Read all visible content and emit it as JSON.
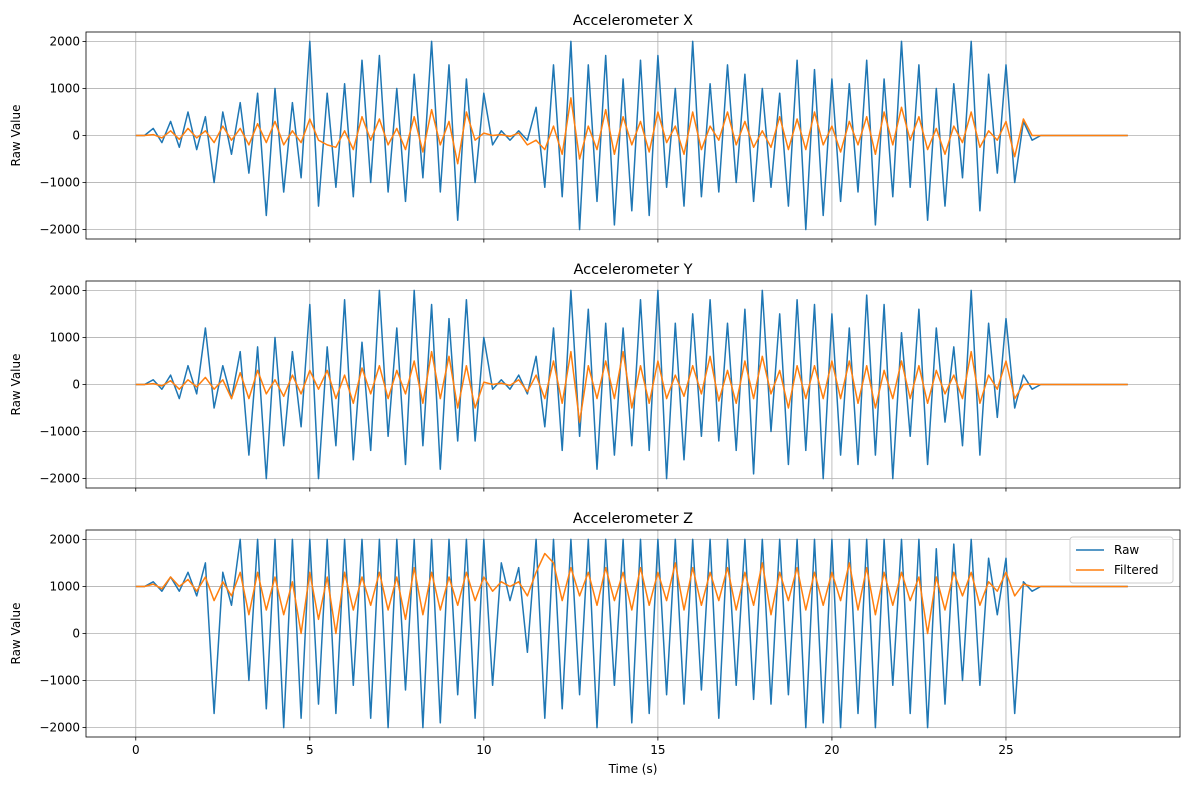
{
  "chart_data": [
    {
      "type": "line",
      "title": "Accelerometer X",
      "xlabel": "",
      "ylabel": "Raw Value",
      "xlim": [
        -1.43,
        30.0
      ],
      "ylim": [
        -2200,
        2200
      ],
      "xticks": [
        0,
        5,
        10,
        15,
        20,
        25
      ],
      "xtick_labels_visible": false,
      "yticks": [
        -2000,
        -1000,
        0,
        1000,
        2000
      ],
      "ytick_labels": [
        "−2000",
        "−1000",
        "0",
        "1000",
        "2000"
      ],
      "grid": true,
      "series": [
        {
          "color": "#1f77b4",
          "values": [
            0,
            0,
            150,
            -150,
            300,
            -250,
            500,
            -300,
            400,
            -1000,
            500,
            -400,
            700,
            -800,
            900,
            -1700,
            1000,
            -1200,
            700,
            -900,
            2000,
            -1500,
            900,
            -1100,
            1100,
            -1300,
            1600,
            -1000,
            1700,
            -1200,
            1000,
            -1400,
            1300,
            -900,
            2000,
            -1200,
            1500,
            -1800,
            1200,
            -1000,
            900,
            -200,
            100,
            -100,
            100,
            -100,
            600,
            -1100,
            1500,
            -1300,
            2000,
            -2000,
            1500,
            -1400,
            1700,
            -1900,
            1200,
            -1600,
            1600,
            -1700,
            1700,
            -1100,
            1000,
            -1500,
            2000,
            -1300,
            1100,
            -1200,
            1500,
            -1000,
            1300,
            -1400,
            1000,
            -1100,
            900,
            -1500,
            1600,
            -2000,
            1400,
            -1700,
            1200,
            -1400,
            1100,
            -1200,
            1600,
            -1900,
            1200,
            -1300,
            2000,
            -1100,
            1500,
            -1800,
            1000,
            -1500,
            1100,
            -900,
            2000,
            -1600,
            1300,
            -800,
            1500,
            -1000,
            300,
            -100,
            0,
            0,
            0,
            0,
            0,
            0,
            0,
            0,
            0,
            0,
            0
          ]
        },
        {
          "color": "#ff7f0e",
          "values": [
            0,
            0,
            20,
            -50,
            100,
            -80,
            150,
            -50,
            100,
            -150,
            200,
            -100,
            150,
            -200,
            250,
            -150,
            300,
            -200,
            100,
            -150,
            350,
            -100,
            -200,
            -250,
            100,
            -300,
            400,
            -100,
            350,
            -200,
            150,
            -300,
            400,
            -350,
            550,
            -200,
            300,
            -600,
            500,
            -100,
            50,
            0,
            20,
            -20,
            50,
            -200,
            -100,
            -300,
            200,
            -400,
            800,
            -500,
            200,
            -300,
            550,
            -400,
            400,
            -200,
            300,
            -350,
            500,
            -150,
            200,
            -400,
            500,
            -300,
            200,
            -100,
            500,
            -200,
            300,
            -250,
            100,
            -250,
            400,
            -300,
            350,
            -300,
            500,
            -200,
            200,
            -350,
            300,
            -200,
            400,
            -400,
            500,
            -200,
            600,
            -100,
            400,
            -300,
            150,
            -400,
            200,
            -150,
            500,
            -250,
            100,
            -100,
            300,
            -450,
            350,
            0,
            0,
            0,
            0,
            0,
            0,
            0,
            0,
            0,
            0,
            0,
            0
          ]
        }
      ]
    },
    {
      "type": "line",
      "title": "Accelerometer Y",
      "xlabel": "",
      "ylabel": "Raw Value",
      "xlim": [
        -1.43,
        30.0
      ],
      "ylim": [
        -2200,
        2200
      ],
      "xticks": [
        0,
        5,
        10,
        15,
        20,
        25
      ],
      "xtick_labels_visible": false,
      "yticks": [
        -2000,
        -1000,
        0,
        1000,
        2000
      ],
      "ytick_labels": [
        "−2000",
        "−1000",
        "0",
        "1000",
        "2000"
      ],
      "grid": true,
      "series": [
        {
          "color": "#1f77b4",
          "values": [
            0,
            0,
            100,
            -100,
            200,
            -300,
            400,
            -200,
            1200,
            -500,
            400,
            -300,
            700,
            -1500,
            800,
            -2000,
            1000,
            -1300,
            700,
            -900,
            1700,
            -2000,
            800,
            -1300,
            1800,
            -1600,
            900,
            -1400,
            2000,
            -1100,
            1200,
            -1700,
            2000,
            -1300,
            1700,
            -1800,
            1400,
            -1200,
            1800,
            -1200,
            1000,
            -100,
            100,
            -100,
            200,
            -200,
            600,
            -900,
            1200,
            -1400,
            2000,
            -1100,
            1600,
            -1800,
            1300,
            -1500,
            1200,
            -1300,
            1800,
            -1400,
            2000,
            -2000,
            1300,
            -1600,
            1500,
            -1100,
            1800,
            -1200,
            1300,
            -1400,
            1600,
            -1900,
            2000,
            -1000,
            1500,
            -1700,
            1800,
            -1400,
            1700,
            -2000,
            1500,
            -1500,
            1200,
            -1700,
            1900,
            -1500,
            1700,
            -2000,
            1100,
            -1100,
            1600,
            -1700,
            1200,
            -800,
            800,
            -1300,
            2000,
            -1500,
            1300,
            -700,
            1400,
            -500,
            200,
            -100,
            0,
            0,
            0,
            0,
            0,
            0,
            0,
            0,
            0,
            0,
            0
          ]
        },
        {
          "color": "#ff7f0e",
          "values": [
            0,
            0,
            20,
            -30,
            80,
            -100,
            100,
            -50,
            150,
            -100,
            100,
            -300,
            250,
            -300,
            300,
            -200,
            100,
            -250,
            200,
            -200,
            300,
            -100,
            300,
            -300,
            200,
            -400,
            350,
            -200,
            400,
            -300,
            300,
            -200,
            500,
            -400,
            700,
            -300,
            600,
            -500,
            400,
            -500,
            50,
            0,
            30,
            -20,
            100,
            -150,
            200,
            -300,
            500,
            -400,
            700,
            -800,
            400,
            -300,
            500,
            -300,
            700,
            -500,
            400,
            -400,
            500,
            -300,
            200,
            -250,
            400,
            -200,
            600,
            -350,
            300,
            -400,
            500,
            -300,
            600,
            -200,
            300,
            -500,
            400,
            -300,
            400,
            -300,
            500,
            -300,
            500,
            -400,
            400,
            -500,
            300,
            -300,
            500,
            -300,
            400,
            -400,
            300,
            -200,
            200,
            -300,
            700,
            -400,
            200,
            -100,
            500,
            -300,
            0,
            10,
            0,
            0,
            0,
            0,
            0,
            0,
            0,
            0,
            0,
            0,
            0
          ]
        }
      ]
    },
    {
      "type": "line",
      "title": "Accelerometer Z",
      "xlabel": "Time (s)",
      "ylabel": "Raw Value",
      "xlim": [
        -1.43,
        30.0
      ],
      "ylim": [
        -2200,
        2200
      ],
      "xticks": [
        0,
        5,
        10,
        15,
        20,
        25
      ],
      "xtick_labels": [
        "0",
        "5",
        "10",
        "15",
        "20",
        "25"
      ],
      "yticks": [
        -2000,
        -1000,
        0,
        1000,
        2000
      ],
      "ytick_labels": [
        "−2000",
        "−1000",
        "0",
        "1000",
        "2000"
      ],
      "grid": true,
      "legend": {
        "placement": "top-right",
        "entries": [
          "Raw",
          "Filtered"
        ]
      },
      "series": [
        {
          "name": "Raw",
          "color": "#1f77b4",
          "values": [
            1000,
            1000,
            1100,
            900,
            1200,
            900,
            1300,
            800,
            1500,
            -1700,
            1300,
            600,
            2000,
            -1000,
            2000,
            -1600,
            2000,
            -2000,
            2000,
            -1800,
            2000,
            -1500,
            2000,
            -1700,
            2000,
            -1100,
            2000,
            -1800,
            2000,
            -2000,
            2000,
            -1200,
            2000,
            -2000,
            2000,
            -1900,
            2000,
            -1300,
            2000,
            -1800,
            2000,
            -1100,
            1500,
            700,
            1400,
            -400,
            2000,
            -1800,
            2000,
            -1600,
            2000,
            -1300,
            2000,
            -2000,
            2000,
            -1100,
            2000,
            -1900,
            2000,
            -1700,
            2000,
            -1300,
            2000,
            -1500,
            2000,
            -1200,
            2000,
            -1800,
            2000,
            -1100,
            2000,
            -1400,
            2000,
            -1500,
            2000,
            -1300,
            2000,
            -2000,
            2000,
            -1900,
            2000,
            -2000,
            2000,
            -1700,
            2000,
            -2000,
            2000,
            -1100,
            2000,
            -1700,
            2000,
            -2000,
            1800,
            -1500,
            1900,
            -1000,
            2000,
            -1100,
            1600,
            400,
            1600,
            -1700,
            1100,
            900,
            1000,
            1000,
            1000,
            1000,
            1000,
            1000,
            1000,
            1000,
            1000,
            1000,
            1000
          ]
        },
        {
          "name": "Filtered",
          "color": "#ff7f0e",
          "values": [
            1000,
            1000,
            1050,
            950,
            1200,
            1000,
            1150,
            900,
            1200,
            700,
            1100,
            800,
            1300,
            400,
            1300,
            500,
            1200,
            400,
            1100,
            0,
            1300,
            300,
            1200,
            0,
            1300,
            500,
            1200,
            600,
            1300,
            500,
            1200,
            300,
            1400,
            400,
            1300,
            500,
            1200,
            600,
            1300,
            700,
            1200,
            900,
            1100,
            1000,
            1100,
            800,
            1300,
            1700,
            1500,
            700,
            1400,
            800,
            1300,
            600,
            1400,
            700,
            1300,
            500,
            1400,
            600,
            1300,
            700,
            1500,
            500,
            1400,
            600,
            1300,
            700,
            1400,
            500,
            1300,
            600,
            1500,
            400,
            1300,
            700,
            1400,
            500,
            1300,
            600,
            1300,
            700,
            1500,
            500,
            1400,
            400,
            1300,
            600,
            1300,
            700,
            1200,
            0,
            1200,
            500,
            1300,
            800,
            1300,
            600,
            1100,
            900,
            1300,
            800,
            1050,
            1000,
            1000,
            1000,
            1000,
            1000,
            1000,
            1000,
            1000,
            1000,
            1000,
            1000,
            1000
          ]
        }
      ]
    }
  ],
  "x": [
    0,
    0.25,
    0.5,
    0.75,
    1,
    1.25,
    1.5,
    1.75,
    2,
    2.25,
    2.5,
    2.75,
    3,
    3.25,
    3.5,
    3.75,
    4,
    4.25,
    4.5,
    4.75,
    5,
    5.25,
    5.5,
    5.75,
    6,
    6.25,
    6.5,
    6.75,
    7,
    7.25,
    7.5,
    7.75,
    8,
    8.25,
    8.5,
    8.75,
    9,
    9.25,
    9.5,
    9.75,
    10,
    10.25,
    10.5,
    10.75,
    11,
    11.25,
    11.5,
    11.75,
    12,
    12.25,
    12.5,
    12.75,
    13,
    13.25,
    13.5,
    13.75,
    14,
    14.25,
    14.5,
    14.75,
    15,
    15.25,
    15.5,
    15.75,
    16,
    16.25,
    16.5,
    16.75,
    17,
    17.25,
    17.5,
    17.75,
    18,
    18.25,
    18.5,
    18.75,
    19,
    19.25,
    19.5,
    19.75,
    20,
    20.25,
    20.5,
    20.75,
    21,
    21.25,
    21.5,
    21.75,
    22,
    22.25,
    22.5,
    22.75,
    23,
    23.25,
    23.5,
    23.75,
    24,
    24.25,
    24.5,
    24.75,
    25,
    25.25,
    25.5,
    25.75,
    26,
    26.25,
    26.5,
    26.75,
    27,
    27.25,
    27.5,
    27.75,
    28,
    28.25,
    28.5
  ]
}
